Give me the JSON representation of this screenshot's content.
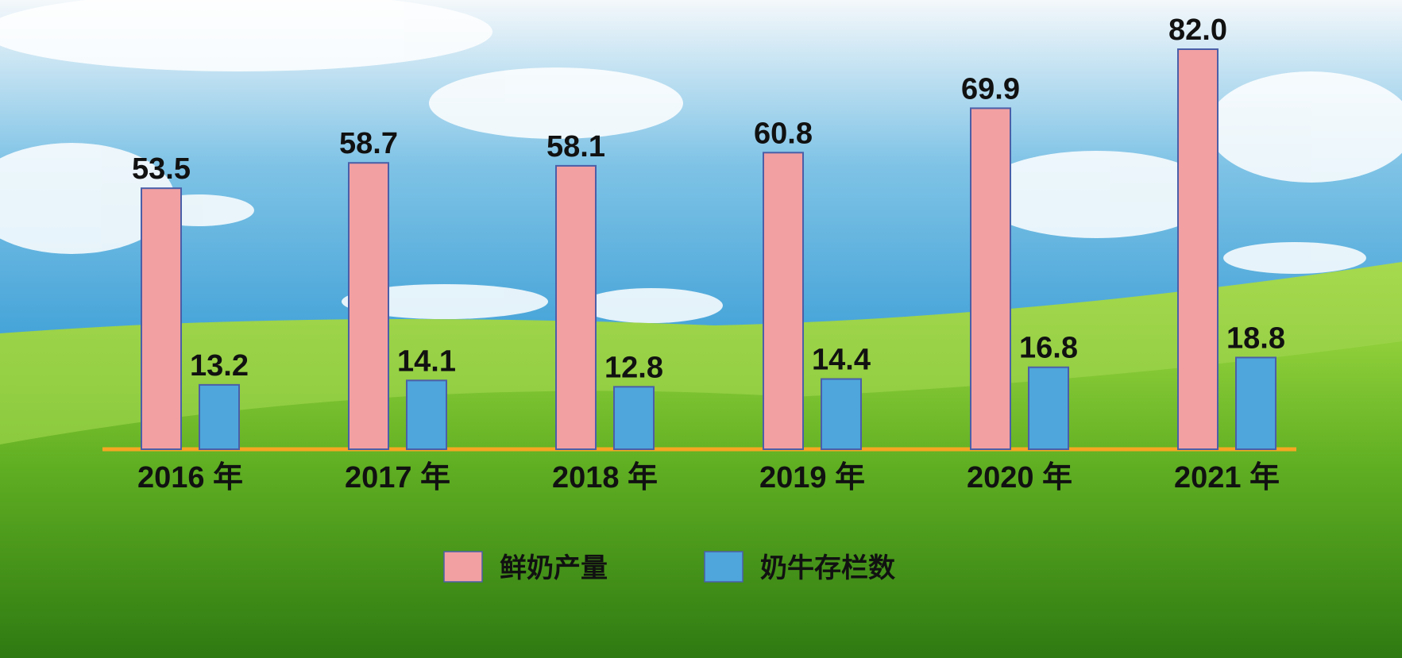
{
  "chart_data": {
    "type": "bar",
    "categories": [
      "2016 年",
      "2017 年",
      "2018 年",
      "2019 年",
      "2020 年",
      "2021 年"
    ],
    "series": [
      {
        "name": "鲜奶产量",
        "color": "#f2a0a2",
        "values": [
          53.5,
          58.7,
          58.1,
          60.8,
          69.9,
          82.0
        ],
        "value_labels": [
          "53.5",
          "58.7",
          "58.1",
          "60.8",
          "69.9",
          "82.0"
        ]
      },
      {
        "name": "奶牛存栏数",
        "color": "#4ea6dc",
        "values": [
          13.2,
          14.1,
          12.8,
          14.4,
          16.8,
          18.8
        ]
      }
    ]
  }
}
